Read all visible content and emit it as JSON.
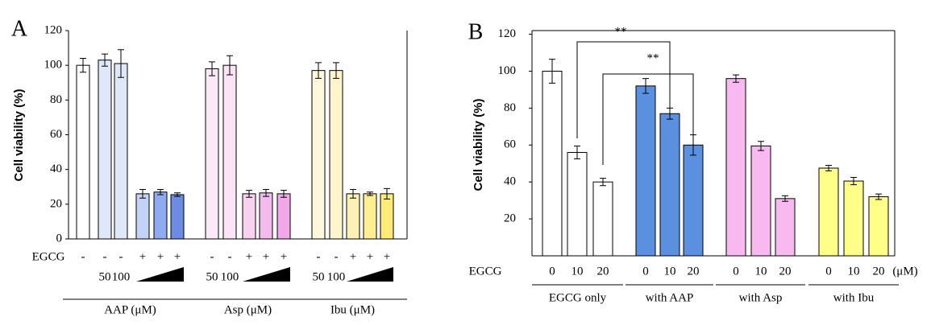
{
  "chart_data": [
    {
      "type": "bar",
      "panel": "A",
      "ylabel": "Cell viability (%)",
      "row_label": "EGCG",
      "ylim": [
        0,
        120
      ],
      "yticks": [
        0,
        20,
        40,
        60,
        80,
        100,
        120
      ],
      "series": [
        {
          "name": "AAP (μM)",
          "categories": [
            "-",
            "-",
            "-",
            "+",
            "+",
            "+"
          ],
          "doses": [
            null,
            "50",
            "100",
            null,
            null,
            null
          ],
          "values": [
            100,
            103,
            101,
            26,
            27,
            25.5
          ],
          "errors": [
            4,
            3.5,
            8,
            2.5,
            1.5,
            1
          ],
          "colors": [
            "#ffffff",
            "#dfe8f9",
            "#dfe8f9",
            "#c2d3f5",
            "#8eaaf0",
            "#6a8ce2"
          ]
        },
        {
          "name": "Asp (μM)",
          "categories": [
            "-",
            "-",
            "+",
            "+",
            "+"
          ],
          "doses": [
            "50",
            "100",
            null,
            null,
            null
          ],
          "values": [
            98,
            100,
            26,
            26.5,
            26
          ],
          "errors": [
            4,
            5.5,
            2,
            2,
            2
          ],
          "colors": [
            "#fbe9f7",
            "#fbe4f5",
            "#f8d0f0",
            "#f3bbeb",
            "#f0a8e8"
          ]
        },
        {
          "name": "Ibu (μM)",
          "categories": [
            "-",
            "-",
            "+",
            "+",
            "+"
          ],
          "doses": [
            "50",
            "100",
            null,
            null,
            null
          ],
          "values": [
            97,
            97,
            26,
            26,
            26
          ],
          "errors": [
            4.5,
            4.5,
            2.5,
            1,
            3
          ],
          "colors": [
            "#fff8dc",
            "#fff5cc",
            "#fff1b4",
            "#ffef90",
            "#ffec78"
          ]
        }
      ]
    },
    {
      "type": "bar",
      "panel": "B",
      "ylabel": "Cell viability (%)",
      "row_label": "EGCG",
      "unit_label": "(μM)",
      "ylim": [
        0,
        122
      ],
      "yticks": [
        20,
        40,
        60,
        80,
        100,
        120
      ],
      "annotations": [
        "**",
        "**"
      ],
      "series": [
        {
          "name": "EGCG only",
          "categories": [
            "0",
            "10",
            "20"
          ],
          "values": [
            100,
            56,
            40
          ],
          "errors": [
            6.5,
            3.5,
            2
          ],
          "colors": [
            "#ffffff",
            "#ffffff",
            "#ffffff"
          ]
        },
        {
          "name": "with AAP",
          "categories": [
            "0",
            "10",
            "20"
          ],
          "values": [
            92,
            77,
            60
          ],
          "errors": [
            4,
            3,
            5.5
          ],
          "colors": [
            "#5b8fe0",
            "#5b8fe0",
            "#5b8fe0"
          ]
        },
        {
          "name": "with Asp",
          "categories": [
            "0",
            "10",
            "20"
          ],
          "values": [
            96,
            59.5,
            31
          ],
          "errors": [
            2,
            2.5,
            1.5
          ],
          "colors": [
            "#f8b8f0",
            "#f8b8f0",
            "#f8b8f0"
          ]
        },
        {
          "name": "with Ibu",
          "categories": [
            "0",
            "10",
            "20"
          ],
          "values": [
            47.5,
            40.5,
            32
          ],
          "errors": [
            1.5,
            2,
            1.5
          ],
          "colors": [
            "#ffff88",
            "#ffff88",
            "#ffff88"
          ]
        }
      ]
    }
  ]
}
